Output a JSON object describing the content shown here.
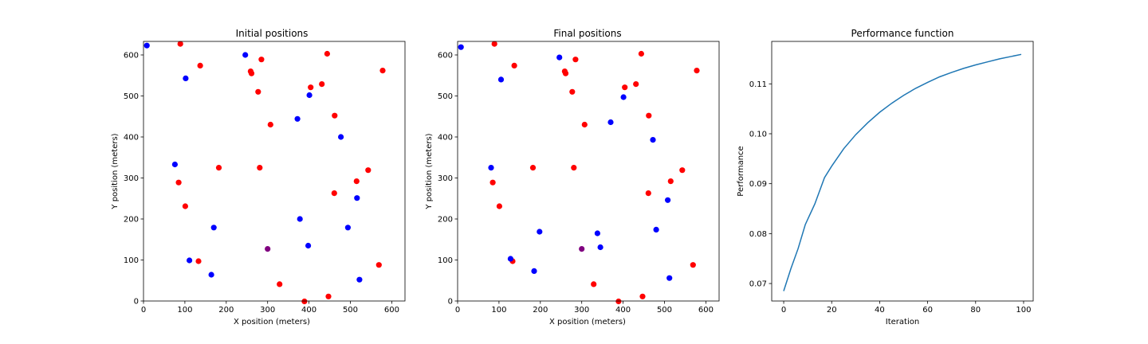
{
  "chart_data": [
    {
      "type": "scatter",
      "title": "Initial positions",
      "xlabel": "X position (meters)",
      "ylabel": "Y position (meters)",
      "xlim": [
        0,
        632
      ],
      "ylim": [
        0,
        633
      ],
      "xticks": [
        0,
        100,
        200,
        300,
        400,
        500,
        600
      ],
      "yticks": [
        0,
        100,
        200,
        300,
        400,
        500,
        600
      ],
      "grid": false,
      "series": [
        {
          "color": "#ff0000",
          "points": [
            [
              89,
              627
            ],
            [
              137,
              574
            ],
            [
              259,
              560
            ],
            [
              261,
              555
            ],
            [
              285,
              589
            ],
            [
              444,
              603
            ],
            [
              578,
              562
            ],
            [
              404,
              521
            ],
            [
              431,
              529
            ],
            [
              277,
              510
            ],
            [
              307,
              430
            ],
            [
              462,
              452
            ],
            [
              182,
              325
            ],
            [
              281,
              325
            ],
            [
              85,
              289
            ],
            [
              543,
              319
            ],
            [
              515,
              292
            ],
            [
              461,
              263
            ],
            [
              101,
              231
            ],
            [
              133,
              97
            ],
            [
              569,
              88
            ],
            [
              329,
              41
            ],
            [
              447,
              11
            ],
            [
              389,
              -1
            ]
          ]
        },
        {
          "color": "#0000ff",
          "points": [
            [
              8,
              623
            ],
            [
              246,
              600
            ],
            [
              102,
              543
            ],
            [
              401,
              502
            ],
            [
              372,
              444
            ],
            [
              477,
              400
            ],
            [
              76,
              333
            ],
            [
              516,
              251
            ],
            [
              378,
              200
            ],
            [
              170,
              179
            ],
            [
              494,
              179
            ],
            [
              398,
              135
            ],
            [
              111,
              99
            ],
            [
              164,
              64
            ],
            [
              522,
              52
            ]
          ]
        },
        {
          "color": "#800080",
          "points": [
            [
              300,
              127
            ]
          ]
        }
      ]
    },
    {
      "type": "scatter",
      "title": "Final positions",
      "xlabel": "X position (meters)",
      "ylabel": "Y position (meters)",
      "xlim": [
        0,
        632
      ],
      "ylim": [
        0,
        633
      ],
      "xticks": [
        0,
        100,
        200,
        300,
        400,
        500,
        600
      ],
      "yticks": [
        0,
        100,
        200,
        300,
        400,
        500,
        600
      ],
      "grid": false,
      "series": [
        {
          "color": "#ff0000",
          "points": [
            [
              89,
              627
            ],
            [
              137,
              574
            ],
            [
              259,
              560
            ],
            [
              261,
              555
            ],
            [
              285,
              589
            ],
            [
              444,
              603
            ],
            [
              578,
              562
            ],
            [
              404,
              521
            ],
            [
              431,
              529
            ],
            [
              277,
              510
            ],
            [
              307,
              430
            ],
            [
              462,
              452
            ],
            [
              182,
              325
            ],
            [
              281,
              325
            ],
            [
              85,
              289
            ],
            [
              543,
              319
            ],
            [
              515,
              292
            ],
            [
              461,
              263
            ],
            [
              101,
              231
            ],
            [
              133,
              97
            ],
            [
              569,
              88
            ],
            [
              329,
              41
            ],
            [
              447,
              11
            ],
            [
              389,
              -1
            ]
          ]
        },
        {
          "color": "#0000ff",
          "points": [
            [
              8,
              619
            ],
            [
              246,
              594
            ],
            [
              105,
              540
            ],
            [
              401,
              497
            ],
            [
              370,
              436
            ],
            [
              472,
              393
            ],
            [
              81,
              325
            ],
            [
              508,
              246
            ],
            [
              198,
              169
            ],
            [
              480,
              174
            ],
            [
              338,
              165
            ],
            [
              345,
              131
            ],
            [
              128,
              103
            ],
            [
              185,
              73
            ],
            [
              512,
              56
            ]
          ]
        },
        {
          "color": "#800080",
          "points": [
            [
              300,
              127
            ]
          ]
        }
      ]
    },
    {
      "type": "line",
      "title": "Performance function",
      "xlabel": "Iteration",
      "ylabel": "Performance",
      "xlim": [
        -5,
        104
      ],
      "ylim": [
        0.0665,
        0.1185
      ],
      "xticks": [
        0,
        20,
        40,
        60,
        80,
        100
      ],
      "yticks": [
        0.07,
        0.08,
        0.09,
        0.1,
        0.11
      ],
      "ytick_labels": [
        "0.07",
        "0.08",
        "0.09",
        "0.10",
        "0.11"
      ],
      "grid": false,
      "series": [
        {
          "color": "#1f77b4",
          "x": [
            0,
            3,
            6,
            9,
            13,
            17,
            20,
            25,
            30,
            35,
            40,
            45,
            50,
            55,
            60,
            65,
            70,
            75,
            80,
            85,
            90,
            95,
            99
          ],
          "y": [
            0.0685,
            0.073,
            0.077,
            0.0818,
            0.086,
            0.0912,
            0.0935,
            0.097,
            0.0998,
            0.1022,
            0.1043,
            0.1061,
            0.1077,
            0.1091,
            0.1103,
            0.1114,
            0.1123,
            0.1131,
            0.1138,
            0.1144,
            0.115,
            0.1155,
            0.1159
          ]
        }
      ]
    }
  ]
}
